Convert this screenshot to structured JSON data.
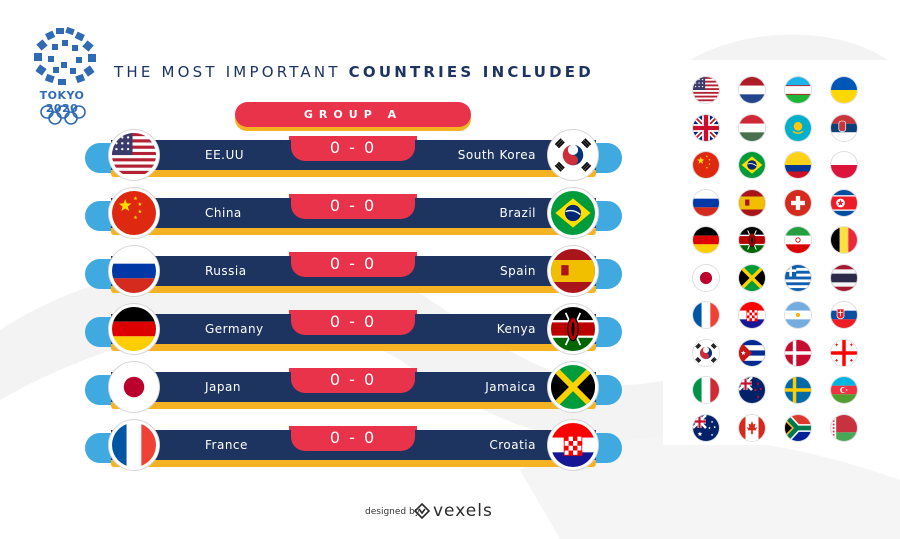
{
  "logo": {
    "year_text": "TOKYO 2020"
  },
  "headline": {
    "part1": "THE MOST IMPORTANT",
    "part2": "COUNTRIES INCLUDED"
  },
  "group": {
    "label": "GROUP A"
  },
  "matches": [
    {
      "home": "EE.UU",
      "score": "0 - 0",
      "away": "South Korea",
      "home_flag": "usa",
      "away_flag": "south-korea"
    },
    {
      "home": "China",
      "score": "0 - 0",
      "away": "Brazil",
      "home_flag": "china",
      "away_flag": "brazil"
    },
    {
      "home": "Russia",
      "score": "0 - 0",
      "away": "Spain",
      "home_flag": "russia",
      "away_flag": "spain"
    },
    {
      "home": "Germany",
      "score": "0 - 0",
      "away": "Kenya",
      "home_flag": "germany",
      "away_flag": "kenya"
    },
    {
      "home": "Japan",
      "score": "0 - 0",
      "away": "Jamaica",
      "home_flag": "japan",
      "away_flag": "jamaica"
    },
    {
      "home": "France",
      "score": "0 - 0",
      "away": "Croatia",
      "home_flag": "france",
      "away_flag": "croatia"
    }
  ],
  "flag_grid": [
    [
      "usa",
      "netherlands",
      "uzbekistan",
      "ukraine"
    ],
    [
      "uk",
      "hungary",
      "kazakhstan",
      "serbia"
    ],
    [
      "china",
      "brazil",
      "colombia",
      "poland"
    ],
    [
      "russia",
      "spain",
      "switzerland",
      "north-korea"
    ],
    [
      "germany",
      "kenya",
      "iran",
      "belgium"
    ],
    [
      "japan",
      "jamaica",
      "greece",
      "thailand"
    ],
    [
      "france",
      "croatia",
      "argentina",
      "slovakia"
    ],
    [
      "south-korea",
      "cuba",
      "denmark",
      "georgia"
    ],
    [
      "italy",
      "new-zealand",
      "sweden",
      "azerbaijan"
    ],
    [
      "australia",
      "canada",
      "south-africa",
      "belarus"
    ]
  ],
  "colors": {
    "navy": "#1d3461",
    "red": "#e8334a",
    "yellow": "#f5b324",
    "light_blue": "#3fa9e0"
  },
  "credit": {
    "designed_by": "designed by",
    "brand": "vexels"
  }
}
